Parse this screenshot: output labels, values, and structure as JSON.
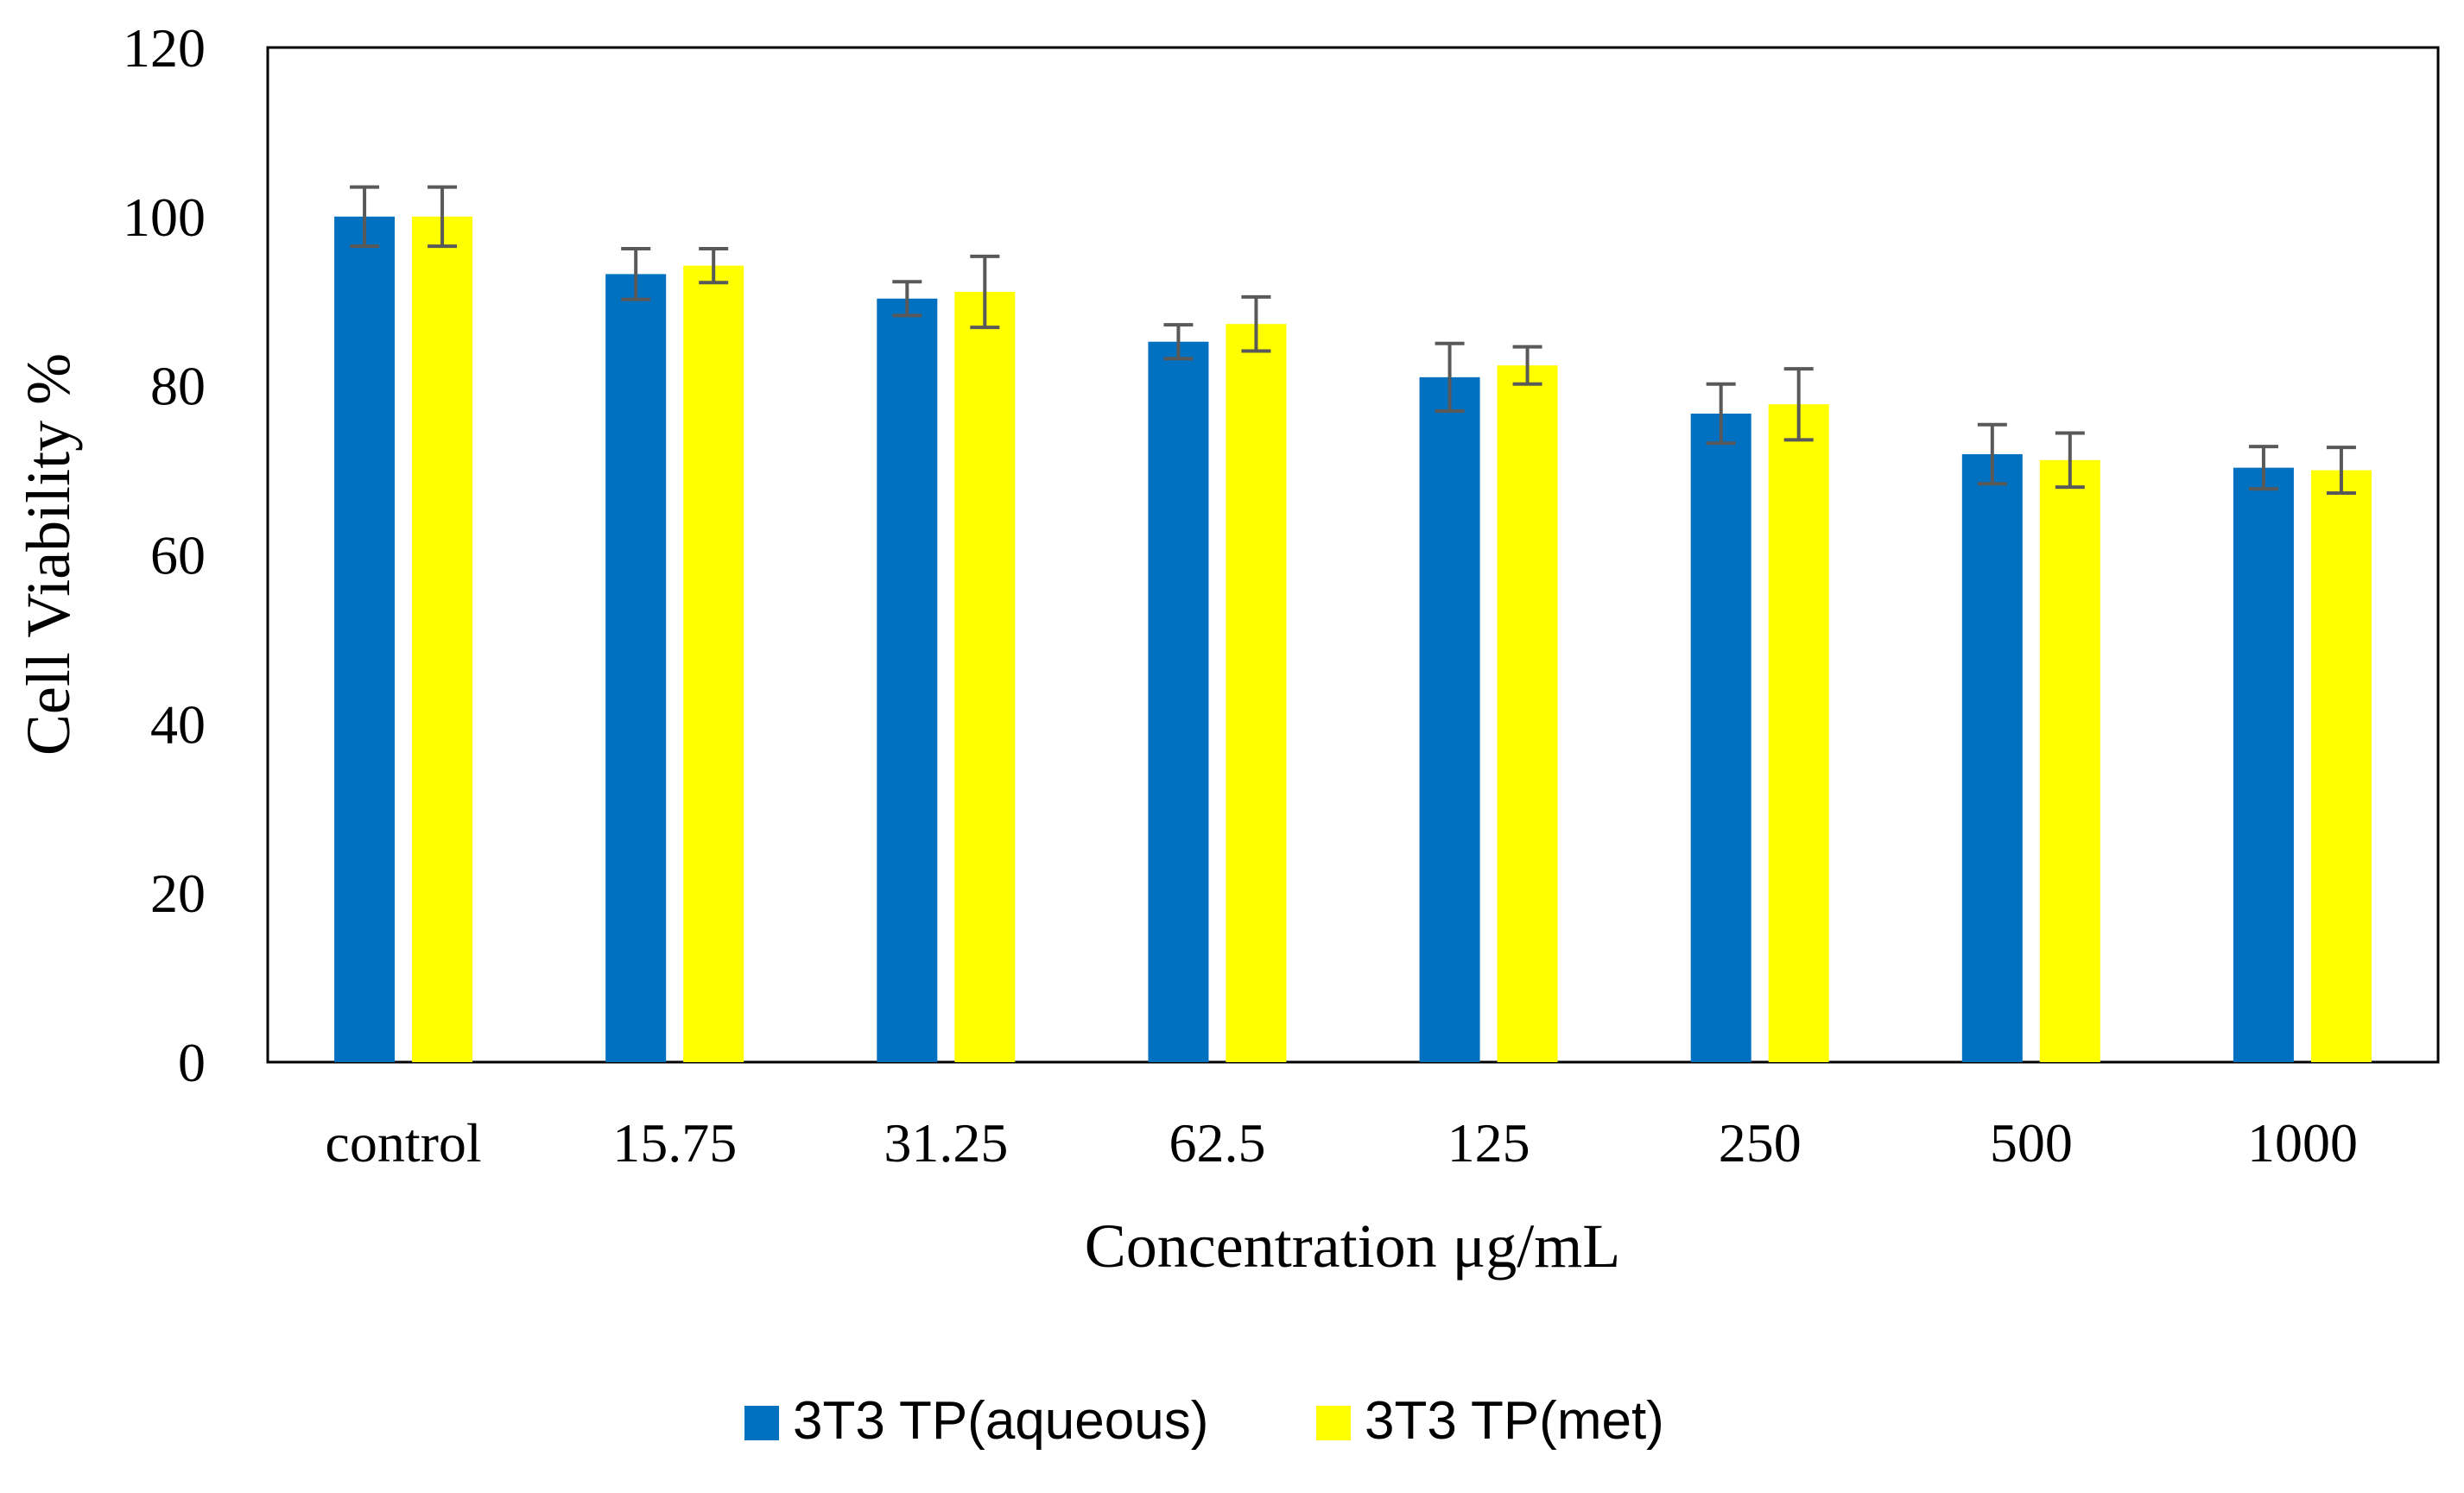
{
  "chart_data": {
    "type": "bar",
    "title": "",
    "xlabel": "Concentration μg/mL",
    "ylabel": "Cell Viability %",
    "ylim": [
      0,
      120
    ],
    "yticks": [
      0,
      20,
      40,
      60,
      80,
      100,
      120
    ],
    "grid": false,
    "legend_position": "bottom",
    "categories": [
      "control",
      "15.75",
      "31.25",
      "62.5",
      "125",
      "250",
      "500",
      "1000"
    ],
    "series": [
      {
        "name": "3T3 TP(aqueous)",
        "color": "#0070C0",
        "values": [
          100,
          93.2,
          90.3,
          85.2,
          81,
          76.7,
          71.9,
          70.3
        ],
        "errors": [
          3.5,
          3,
          2,
          2,
          4,
          3.5,
          3.5,
          2.5
        ]
      },
      {
        "name": "3T3 TP(met)",
        "color": "#FFFF00",
        "values": [
          100,
          94.2,
          91.1,
          87.3,
          82.4,
          77.8,
          71.2,
          70
        ],
        "errors": [
          3.5,
          2,
          4.2,
          3.2,
          2.2,
          4.2,
          3.2,
          2.7
        ]
      }
    ]
  },
  "errorbar_color": "#595959"
}
